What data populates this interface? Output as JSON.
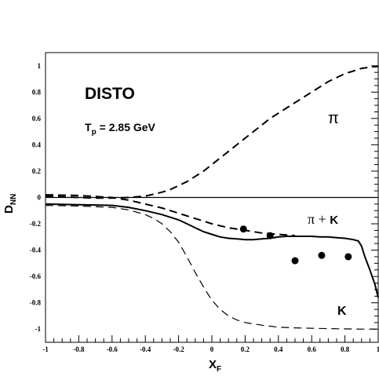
{
  "chart_data": {
    "type": "line",
    "xlabel": "X",
    "xlabel_sub": "F",
    "ylabel": "D",
    "ylabel_sub": "NN",
    "xlim": [
      -1,
      1
    ],
    "ylim": [
      -1.1,
      1.1
    ],
    "x_ticks": [
      -1,
      -0.8,
      -0.6,
      -0.4,
      -0.2,
      0,
      0.2,
      0.4,
      0.6,
      0.8,
      1
    ],
    "x_tick_labels": [
      "-1",
      "-0.8",
      "-0.6",
      "-0.4",
      "-0.2",
      "0",
      "0.2",
      "0.4",
      "0.6",
      "0.8",
      "1"
    ],
    "y_ticks": [
      -1,
      -0.8,
      -0.6,
      -0.4,
      -0.2,
      0,
      0.2,
      0.4,
      0.6,
      0.8,
      1
    ],
    "y_tick_labels": [
      "-1",
      "-0.8",
      "-0.6",
      "-0.4",
      "-0.2",
      "0",
      "0.2",
      "0.4",
      "0.6",
      "0.8",
      "1"
    ],
    "zero_line": true,
    "grid": false,
    "annotations": {
      "experiment": "DISTO",
      "energy_prefix": "T",
      "energy_sub": "p",
      "energy_value": "= 2.85 GeV",
      "pi_label": "π",
      "pik_label": "π + ",
      "pik_label_k": "K",
      "k_label": "K"
    },
    "series": [
      {
        "style": "dashed-thick",
        "x": [
          -1,
          -0.9,
          -0.8,
          -0.7,
          -0.6,
          -0.5,
          -0.4,
          -0.35,
          -0.3,
          -0.25,
          -0.2,
          -0.15,
          -0.1,
          -0.05,
          0,
          0.05,
          0.1,
          0.15,
          0.2,
          0.25,
          0.3,
          0.35,
          0.4,
          0.45,
          0.5,
          0.55,
          0.6,
          0.65,
          0.7,
          0.75,
          0.8,
          0.85,
          0.9,
          0.95,
          1
        ],
        "y": [
          0.01,
          0.005,
          0.0,
          -0.005,
          -0.005,
          0.0,
          0.01,
          0.025,
          0.04,
          0.06,
          0.09,
          0.12,
          0.16,
          0.2,
          0.25,
          0.3,
          0.35,
          0.4,
          0.45,
          0.5,
          0.55,
          0.6,
          0.64,
          0.68,
          0.72,
          0.76,
          0.8,
          0.84,
          0.88,
          0.91,
          0.94,
          0.96,
          0.98,
          0.99,
          0.995
        ]
      },
      {
        "style": "dashed-thick",
        "x": [
          -1,
          -0.8,
          -0.6,
          -0.5,
          -0.4,
          -0.3,
          -0.2,
          -0.1,
          0,
          0.1,
          0.2,
          0.25,
          0.3,
          0.35,
          0.4,
          0.45,
          0.5
        ],
        "y": [
          0.02,
          0.015,
          0.0,
          -0.02,
          -0.05,
          -0.08,
          -0.12,
          -0.16,
          -0.2,
          -0.23,
          -0.25,
          -0.26,
          -0.27,
          -0.275,
          -0.28,
          -0.285,
          -0.29
        ]
      },
      {
        "style": "solid",
        "x": [
          -1,
          -0.8,
          -0.6,
          -0.5,
          -0.4,
          -0.3,
          -0.25,
          -0.2,
          -0.15,
          -0.1,
          -0.05,
          0,
          0.05,
          0.1,
          0.15,
          0.2,
          0.25,
          0.3,
          0.35,
          0.4,
          0.45,
          0.5,
          0.55,
          0.6,
          0.65,
          0.7,
          0.75,
          0.8,
          0.85,
          0.88,
          0.9,
          0.92,
          0.95,
          0.98,
          1
        ],
        "y": [
          -0.05,
          -0.055,
          -0.06,
          -0.075,
          -0.1,
          -0.13,
          -0.15,
          -0.17,
          -0.2,
          -0.23,
          -0.26,
          -0.28,
          -0.3,
          -0.31,
          -0.315,
          -0.32,
          -0.32,
          -0.315,
          -0.31,
          -0.3,
          -0.295,
          -0.295,
          -0.295,
          -0.295,
          -0.3,
          -0.3,
          -0.305,
          -0.31,
          -0.32,
          -0.33,
          -0.37,
          -0.45,
          -0.55,
          -0.66,
          -0.76
        ]
      },
      {
        "style": "dashed-thin",
        "x": [
          -1,
          -0.8,
          -0.6,
          -0.5,
          -0.4,
          -0.35,
          -0.3,
          -0.25,
          -0.2,
          -0.15,
          -0.1,
          -0.05,
          0,
          0.05,
          0.1,
          0.15,
          0.2,
          0.3,
          0.4,
          0.5,
          0.6,
          0.7,
          0.8,
          0.9,
          1
        ],
        "y": [
          -0.06,
          -0.065,
          -0.075,
          -0.095,
          -0.13,
          -0.16,
          -0.2,
          -0.26,
          -0.34,
          -0.45,
          -0.57,
          -0.68,
          -0.78,
          -0.85,
          -0.9,
          -0.93,
          -0.95,
          -0.97,
          -0.985,
          -0.99,
          -0.993,
          -0.996,
          -0.998,
          -1.0,
          -1.0
        ]
      }
    ],
    "points": {
      "x": [
        0.19,
        0.35,
        0.5,
        0.66,
        0.82
      ],
      "y": [
        -0.24,
        -0.29,
        -0.48,
        -0.44,
        -0.45
      ]
    }
  }
}
